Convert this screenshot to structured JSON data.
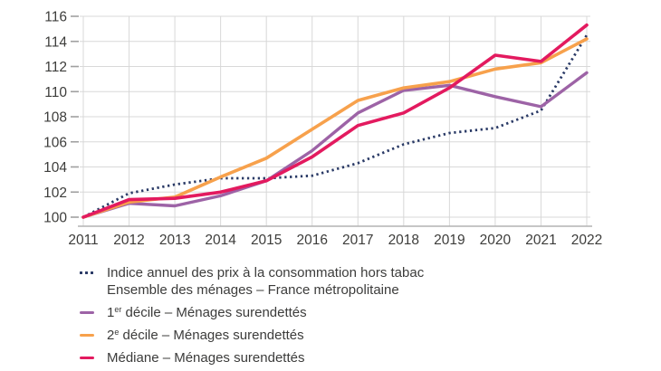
{
  "chart_data": {
    "type": "line",
    "title": "",
    "xlabel": "",
    "ylabel": "",
    "x": [
      2011,
      2012,
      2013,
      2014,
      2015,
      2016,
      2017,
      2018,
      2019,
      2020,
      2021,
      2022
    ],
    "ylim": [
      100,
      116
    ],
    "ytick_step": 2,
    "yticks": [
      100,
      102,
      104,
      106,
      108,
      110,
      112,
      114,
      116
    ],
    "grid": true,
    "legend_position": "bottom-left",
    "series": [
      {
        "key": "cpi",
        "name": "Indice annuel des prix à la consommation hors tabac — Ensemble des ménages – France métropolitaine",
        "style": "dotted",
        "color": "#2a3a66",
        "width": 2.8,
        "values": [
          100,
          101.9,
          102.6,
          103.1,
          103.1,
          103.3,
          104.3,
          105.8,
          106.7,
          107.1,
          108.5,
          114.5
        ]
      },
      {
        "key": "decile1",
        "name": "1er décile – Ménages surendettés",
        "style": "solid",
        "color": "#9d63a6",
        "width": 3.4,
        "values": [
          100,
          101.1,
          100.9,
          101.7,
          102.9,
          105.3,
          108.3,
          110.1,
          110.5,
          109.6,
          108.8,
          111.5
        ]
      },
      {
        "key": "decile2",
        "name": "2e décile – Ménages surendettés",
        "style": "solid",
        "color": "#f7a14c",
        "width": 3.6,
        "values": [
          100,
          101.2,
          101.6,
          103.2,
          104.7,
          107.0,
          109.3,
          110.3,
          110.8,
          111.8,
          112.3,
          114.2
        ]
      },
      {
        "key": "mediane",
        "name": "Médiane – Ménages surendettés",
        "style": "solid",
        "color": "#e31a5f",
        "width": 3.6,
        "values": [
          100,
          101.4,
          101.5,
          102.0,
          102.9,
          104.8,
          107.3,
          108.3,
          110.3,
          112.9,
          112.4,
          115.3
        ]
      }
    ],
    "axis_colors": {
      "gridline": "#d8d8d8",
      "tick_dash": "#a0a0a0",
      "axis_line": "#b4b4b4",
      "label_text": "#3d3d3b"
    }
  },
  "legend": {
    "cpi": {
      "line1": "Indice annuel des prix à la consommation hors tabac",
      "line2": "Ensemble des ménages – France métropolitaine"
    },
    "decile1": {
      "num": "1",
      "sup": "er",
      "rest": " décile – Ménages surendettés"
    },
    "decile2": {
      "num": "2",
      "sup": "e",
      "rest": " décile – Ménages surendettés"
    },
    "mediane": {
      "text": "Médiane – Ménages surendettés"
    }
  }
}
